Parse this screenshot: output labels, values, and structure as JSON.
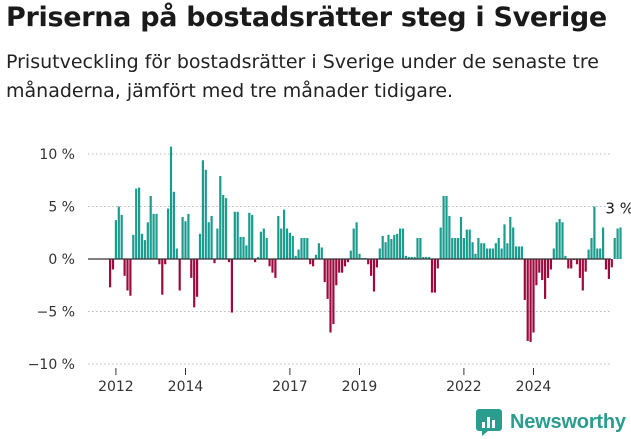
{
  "header": {
    "title": "Priserna på bostadsrätter steg i Sverige",
    "subtitle": "Prisutveckling för bostadsrätter i Sverige under de senaste tre månaderna, jämfört med tre månader tidigare."
  },
  "brand": {
    "name": "Newsworthy",
    "icon": "newsworthy-logo-icon",
    "color": "#2a9d8f"
  },
  "colors": {
    "positive": "#1a9c8e",
    "negative": "#9e0a3e",
    "zero_line": "#333333",
    "grid": "#bbbbbb",
    "axis_text": "#333333"
  },
  "chart_data": {
    "type": "bar",
    "title": "Priserna på bostadsrätter steg i Sverige",
    "xlabel": "",
    "ylabel": "",
    "ylim": [
      -10,
      11
    ],
    "yticks": [
      10,
      5,
      0,
      -5,
      -10
    ],
    "ytick_labels": [
      "10 %",
      "5 %",
      "0 %",
      "−5 %",
      "−10 %"
    ],
    "grid": "horizontal dotted",
    "x_start": "2011-11",
    "xticks": [
      {
        "month": "2012-01",
        "label": "2012"
      },
      {
        "month": "2014-01",
        "label": "2014"
      },
      {
        "month": "2017-01",
        "label": "2017"
      },
      {
        "month": "2019-01",
        "label": "2019"
      },
      {
        "month": "2022-01",
        "label": "2022"
      },
      {
        "month": "2024-01",
        "label": "2024"
      }
    ],
    "values": [
      -2.7,
      -1.0,
      3.7,
      5.0,
      4.2,
      -1.6,
      -3.0,
      -3.5,
      2.3,
      6.7,
      6.8,
      2.4,
      1.8,
      3.5,
      6.0,
      4.3,
      4.3,
      -0.5,
      -3.4,
      -0.5,
      4.8,
      10.7,
      6.4,
      1.0,
      -3.0,
      4.0,
      3.6,
      4.3,
      -1.8,
      -4.6,
      -3.6,
      2.4,
      9.4,
      8.5,
      3.5,
      4.1,
      -0.4,
      2.9,
      7.9,
      6.1,
      5.8,
      -0.3,
      -5.1,
      4.5,
      4.5,
      2.1,
      2.1,
      1.3,
      4.4,
      4.2,
      -0.3,
      0.2,
      2.6,
      2.9,
      2.0,
      -0.7,
      -1.3,
      -1.8,
      4.1,
      2.9,
      4.7,
      2.9,
      2.5,
      2.2,
      0.3,
      0.9,
      2.0,
      2.0,
      2.0,
      -0.5,
      -0.7,
      0.4,
      1.5,
      1.1,
      -2.2,
      -3.8,
      -7.0,
      -6.2,
      -2.5,
      -1.3,
      -1.3,
      -0.7,
      -0.3,
      0.8,
      2.9,
      3.5,
      0.5,
      0.1,
      0.1,
      -0.5,
      -1.6,
      -3.1,
      -0.8,
      1.0,
      2.2,
      1.6,
      2.3,
      1.9,
      2.3,
      2.4,
      2.9,
      2.9,
      0.3,
      0.2,
      0.2,
      0.2,
      2.0,
      2.0,
      0.2,
      0.2,
      0.2,
      -3.2,
      -3.2,
      -0.9,
      3.0,
      6.0,
      6.0,
      4.1,
      2.0,
      2.0,
      2.0,
      4.0,
      2.0,
      2.8,
      2.8,
      1.6,
      0.5,
      2.0,
      1.5,
      1.5,
      1.0,
      1.0,
      1.0,
      1.5,
      2.0,
      1.0,
      3.3,
      1.5,
      4.0,
      3.0,
      1.2,
      1.2,
      1.2,
      -3.9,
      -7.8,
      -7.9,
      -7.0,
      -2.5,
      -1.3,
      -2.0,
      -3.8,
      -1.8,
      -1.0,
      1.0,
      3.5,
      3.8,
      3.5,
      0.3,
      -0.9,
      -0.9,
      -0.1,
      -0.5,
      -1.8,
      -3.0,
      -1.2,
      0.9,
      2.0,
      5.0,
      1.0,
      1.0,
      3.0,
      -1.0,
      -1.9,
      -0.8,
      2.0,
      2.9,
      3.0
    ],
    "annotations": [
      {
        "text": "3 %",
        "target": "last"
      }
    ]
  }
}
